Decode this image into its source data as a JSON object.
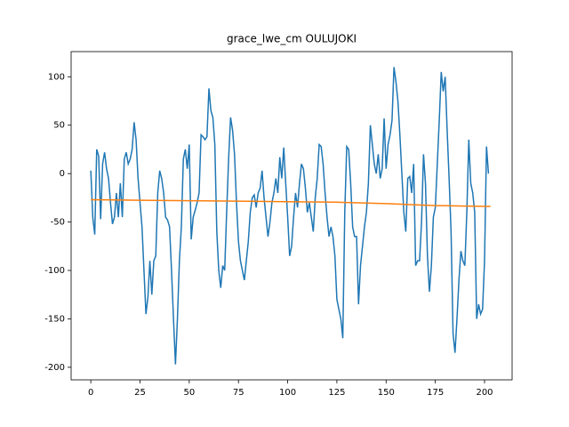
{
  "chart_data": {
    "type": "line",
    "title": "grace_lwe_cm OULUJOKI",
    "x": [
      0,
      1,
      2,
      3,
      4,
      5,
      6,
      7,
      8,
      9,
      10,
      11,
      12,
      13,
      14,
      15,
      16,
      17,
      18,
      19,
      20,
      21,
      22,
      23,
      24,
      25,
      26,
      27,
      28,
      29,
      30,
      31,
      32,
      33,
      34,
      35,
      36,
      37,
      38,
      39,
      40,
      41,
      42,
      43,
      44,
      45,
      46,
      47,
      48,
      49,
      50,
      51,
      52,
      53,
      54,
      55,
      56,
      57,
      58,
      59,
      60,
      61,
      62,
      63,
      64,
      65,
      66,
      67,
      68,
      69,
      70,
      71,
      72,
      73,
      74,
      75,
      76,
      77,
      78,
      79,
      80,
      81,
      82,
      83,
      84,
      85,
      86,
      87,
      88,
      89,
      90,
      91,
      92,
      93,
      94,
      95,
      96,
      97,
      98,
      99,
      100,
      101,
      102,
      103,
      104,
      105,
      106,
      107,
      108,
      109,
      110,
      111,
      112,
      113,
      114,
      115,
      116,
      117,
      118,
      119,
      120,
      121,
      122,
      123,
      124,
      125,
      126,
      127,
      128,
      129,
      130,
      131,
      132,
      133,
      134,
      135,
      136,
      137,
      138,
      139,
      140,
      141,
      142,
      143,
      144,
      145,
      146,
      147,
      148,
      149,
      150,
      151,
      152,
      153,
      154,
      155,
      156,
      157,
      158,
      159,
      160,
      161,
      162,
      163,
      164,
      165,
      166,
      167,
      168,
      169,
      170,
      171,
      172,
      173,
      174,
      175,
      176,
      177,
      178,
      179,
      180,
      181,
      182,
      183,
      184,
      185,
      186,
      187,
      188,
      189,
      190,
      191,
      192,
      193,
      194,
      195,
      196,
      197,
      198,
      199,
      200,
      201,
      202
    ],
    "series": [
      {
        "color": "#1f77b4",
        "values": [
          3,
          -45,
          -63,
          25,
          18,
          -47,
          10,
          22,
          5,
          -5,
          -30,
          -52,
          -45,
          -20,
          -45,
          -10,
          -45,
          15,
          22,
          10,
          15,
          25,
          53,
          35,
          -5,
          -30,
          -55,
          -100,
          -145,
          -128,
          -90,
          -125,
          -90,
          -85,
          -20,
          3,
          -5,
          -20,
          -45,
          -48,
          -55,
          -100,
          -150,
          -197,
          -150,
          -90,
          -55,
          15,
          25,
          5,
          30,
          -68,
          -45,
          -38,
          -30,
          -20,
          40,
          38,
          35,
          38,
          88,
          65,
          58,
          30,
          -60,
          -100,
          -118,
          -95,
          -100,
          -40,
          15,
          58,
          45,
          20,
          -30,
          -70,
          -90,
          -100,
          -110,
          -90,
          -70,
          -40,
          -25,
          -22,
          -35,
          -20,
          -15,
          3,
          -25,
          -45,
          -65,
          -50,
          -30,
          -20,
          -5,
          -20,
          17,
          -5,
          27,
          -10,
          -45,
          -85,
          -75,
          -45,
          -20,
          -35,
          -10,
          10,
          5,
          -15,
          -40,
          -30,
          -45,
          -60,
          -25,
          -5,
          30,
          28,
          10,
          -20,
          -45,
          -65,
          -55,
          -65,
          -85,
          -130,
          -140,
          -150,
          -170,
          -40,
          28,
          25,
          -10,
          -55,
          -65,
          -65,
          -135,
          -95,
          -75,
          -55,
          -40,
          -10,
          50,
          30,
          10,
          0,
          20,
          -5,
          5,
          57,
          5,
          30,
          40,
          55,
          110,
          95,
          75,
          40,
          0,
          -40,
          -60,
          -5,
          -3,
          -20,
          10,
          -95,
          -90,
          -90,
          -50,
          20,
          -10,
          -85,
          -122,
          -95,
          -45,
          -35,
          10,
          55,
          105,
          85,
          100,
          45,
          -5,
          -60,
          -165,
          -185,
          -150,
          -110,
          -80,
          -90,
          -95,
          -40,
          35,
          -10,
          -20,
          -40,
          -150,
          -135,
          -145,
          -140,
          -90,
          28,
          0
        ]
      },
      {
        "color": "#ff7f0e",
        "x": [
          0,
          25,
          50,
          75,
          100,
          125,
          150,
          175,
          203
        ],
        "values": [
          -27,
          -27.5,
          -28,
          -28.5,
          -29,
          -29.5,
          -31,
          -33,
          -34
        ]
      }
    ],
    "xlim": [
      -10,
      214
    ],
    "ylim": [
      -213,
      126
    ],
    "xticks": [
      0,
      25,
      50,
      75,
      100,
      125,
      150,
      175,
      200
    ],
    "yticks": [
      -200,
      -150,
      -100,
      -50,
      0,
      50,
      100
    ]
  }
}
